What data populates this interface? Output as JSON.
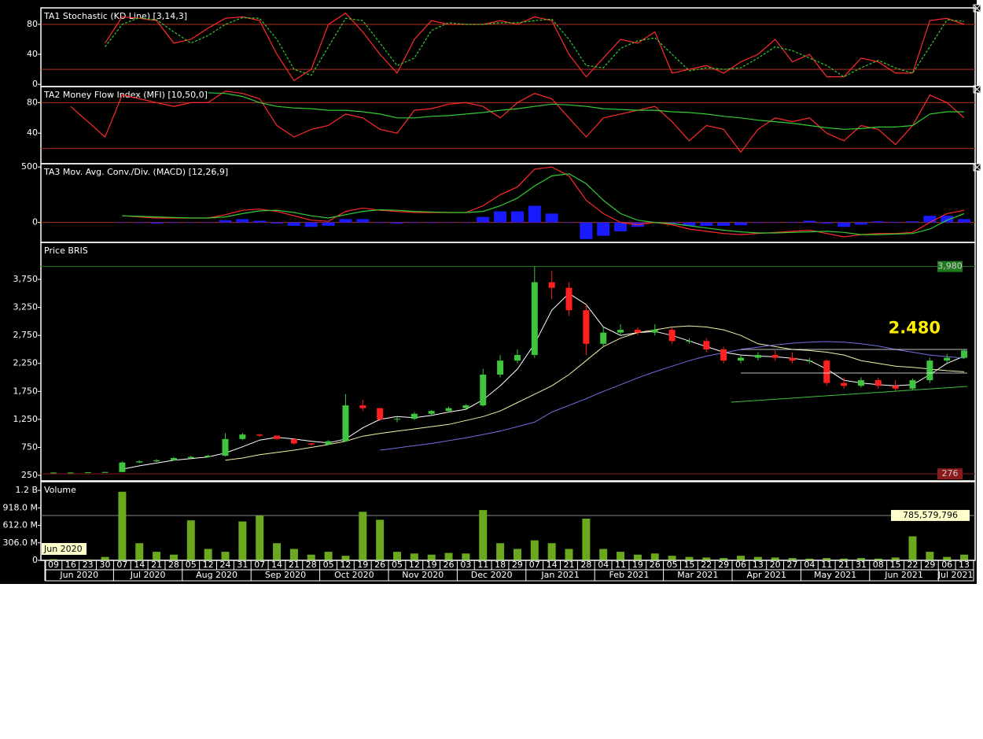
{
  "chart_data": [
    {
      "type": "line",
      "title": "TA1 Stochastic (KD Line) [3,14,3]",
      "ylim": [
        -3,
        102
      ],
      "yticks": [
        0,
        40,
        80
      ],
      "levels": [
        20,
        80
      ],
      "level_color": "#b03020",
      "series": [
        {
          "color": "#ff2a2a",
          "dash": false,
          "values": [
            null,
            null,
            null,
            55,
            90,
            88,
            85,
            55,
            60,
            75,
            88,
            90,
            85,
            40,
            5,
            20,
            80,
            95,
            70,
            40,
            15,
            60,
            85,
            80,
            80,
            80,
            85,
            80,
            90,
            85,
            40,
            10,
            35,
            60,
            55,
            70,
            15,
            20,
            25,
            15,
            30,
            40,
            60,
            30,
            40,
            10,
            10,
            35,
            30,
            15,
            15,
            85,
            88,
            80
          ]
        },
        {
          "color": "#33cc33",
          "dash": true,
          "values": [
            null,
            null,
            null,
            50,
            80,
            89,
            86,
            70,
            55,
            65,
            80,
            89,
            88,
            60,
            20,
            12,
            50,
            88,
            85,
            55,
            25,
            35,
            72,
            82,
            80,
            80,
            82,
            82,
            85,
            87,
            60,
            25,
            22,
            48,
            58,
            62,
            40,
            18,
            22,
            20,
            22,
            35,
            50,
            45,
            35,
            25,
            10,
            22,
            32,
            22,
            15,
            50,
            86,
            84
          ]
        }
      ]
    },
    {
      "type": "line",
      "title": "TA2 Money Flow Index (MFI) [10,50,0]",
      "ylim": [
        0,
        101
      ],
      "yticks": [
        40,
        80
      ],
      "levels": [
        20,
        80
      ],
      "level_color": "#b03020",
      "series": [
        {
          "color": "#ff2a2a",
          "dash": false,
          "values": [
            null,
            75,
            55,
            35,
            90,
            85,
            80,
            75,
            80,
            80,
            95,
            92,
            85,
            50,
            35,
            45,
            50,
            65,
            60,
            45,
            40,
            70,
            72,
            78,
            80,
            75,
            60,
            80,
            92,
            85,
            60,
            35,
            60,
            65,
            70,
            75,
            55,
            30,
            50,
            45,
            15,
            45,
            60,
            55,
            60,
            40,
            30,
            50,
            45,
            25,
            50,
            90,
            80,
            60
          ]
        },
        {
          "color": "#33cc33",
          "dash": false,
          "values": [
            null,
            null,
            null,
            null,
            null,
            null,
            null,
            null,
            null,
            93,
            92,
            88,
            80,
            75,
            73,
            72,
            70,
            70,
            68,
            65,
            60,
            60,
            62,
            63,
            65,
            67,
            70,
            72,
            75,
            78,
            77,
            75,
            72,
            71,
            70,
            70,
            68,
            67,
            65,
            62,
            60,
            57,
            55,
            53,
            50,
            47,
            45,
            46,
            48,
            48,
            50,
            65,
            68,
            68
          ]
        }
      ]
    },
    {
      "type": "combo",
      "title": "TA3 Mov. Avg. Conv./Div. (MACD) [12,26,9]",
      "ylim": [
        -180,
        530
      ],
      "yticks": [
        0,
        500
      ],
      "levels": [
        0
      ],
      "level_color": "#b03020",
      "histogram": {
        "color": "#1a1aff",
        "values": [
          null,
          null,
          null,
          null,
          0,
          -5,
          -10,
          -5,
          0,
          0,
          20,
          30,
          15,
          -10,
          -30,
          -40,
          -30,
          30,
          30,
          -5,
          -10,
          -5,
          -5,
          0,
          0,
          50,
          100,
          100,
          150,
          80,
          0,
          -150,
          -120,
          -80,
          -40,
          0,
          -10,
          -30,
          -30,
          -30,
          -25,
          -5,
          0,
          5,
          15,
          -10,
          -40,
          -20,
          10,
          5,
          10,
          60,
          60,
          30
        ]
      },
      "series": [
        {
          "color": "#ff2a2a",
          "dash": false,
          "values": [
            null,
            null,
            null,
            null,
            60,
            50,
            40,
            40,
            40,
            40,
            70,
            110,
            120,
            100,
            60,
            20,
            10,
            100,
            130,
            110,
            100,
            90,
            90,
            90,
            90,
            150,
            250,
            320,
            480,
            500,
            420,
            200,
            80,
            0,
            -20,
            0,
            -20,
            -60,
            -80,
            -100,
            -110,
            -100,
            -90,
            -80,
            -70,
            -100,
            -130,
            -110,
            -100,
            -100,
            -90,
            0,
            80,
            110
          ]
        },
        {
          "color": "#33cc33",
          "dash": false,
          "values": [
            null,
            null,
            null,
            null,
            60,
            55,
            50,
            45,
            40,
            40,
            50,
            80,
            105,
            110,
            90,
            60,
            40,
            70,
            100,
            115,
            110,
            100,
            95,
            90,
            90,
            100,
            150,
            220,
            330,
            420,
            440,
            350,
            200,
            80,
            20,
            0,
            -10,
            -30,
            -50,
            -70,
            -85,
            -95,
            -95,
            -90,
            -85,
            -80,
            -90,
            -110,
            -110,
            -105,
            -100,
            -60,
            20,
            80
          ]
        }
      ]
    },
    {
      "type": "candlestick",
      "title": "Price BRIS",
      "ylim": [
        152,
        4411
      ],
      "yticks": [
        {
          "value": 250,
          "label": "250"
        },
        {
          "value": 750,
          "label": "750"
        },
        {
          "value": 1250,
          "label": "1,250"
        },
        {
          "value": 1750,
          "label": "1,750"
        },
        {
          "value": 2250,
          "label": "2,250"
        },
        {
          "value": 2750,
          "label": "2,750"
        },
        {
          "value": 3250,
          "label": "3,250"
        },
        {
          "value": 3750,
          "label": "3,750"
        }
      ],
      "up_color": "#3ec43e",
      "down_color": "#ff2020",
      "open": [
        300,
        300,
        300,
        305,
        310,
        480,
        500,
        520,
        560,
        580,
        600,
        900,
        980,
        960,
        900,
        820,
        800,
        860,
        1500,
        1450,
        1250,
        1260,
        1350,
        1400,
        1450,
        1500,
        2050,
        2300,
        2400,
        3700,
        3600,
        3200,
        2600,
        2800,
        2850,
        2800,
        2850,
        2650,
        2650,
        2500,
        2300,
        2350,
        2400,
        2350,
        2300,
        2300,
        1900,
        1850,
        1950,
        1850,
        1800,
        1950,
        2300,
        2350
      ],
      "high": [
        310,
        310,
        310,
        315,
        500,
        520,
        540,
        580,
        600,
        620,
        1000,
        1010,
        990,
        960,
        900,
        830,
        880,
        1700,
        1600,
        1460,
        1300,
        1380,
        1420,
        1480,
        1520,
        2150,
        2400,
        2500,
        3980,
        3900,
        3700,
        3300,
        2900,
        2950,
        2900,
        2950,
        2900,
        2700,
        2700,
        2550,
        2400,
        2450,
        2480,
        2450,
        2350,
        2320,
        2000,
        2000,
        2000,
        1950,
        1980,
        2350,
        2420,
        2500
      ],
      "low": [
        290,
        290,
        295,
        300,
        305,
        470,
        490,
        510,
        550,
        570,
        590,
        880,
        940,
        880,
        800,
        780,
        790,
        850,
        1400,
        1220,
        1200,
        1240,
        1330,
        1380,
        1420,
        1480,
        2000,
        2250,
        2350,
        3400,
        3100,
        2400,
        2550,
        2750,
        2750,
        2750,
        2600,
        2600,
        2450,
        2250,
        2250,
        2300,
        2300,
        2250,
        2250,
        1850,
        1800,
        1820,
        1800,
        1750,
        1780,
        1900,
        2250,
        2330
      ],
      "close": [
        300,
        300,
        305,
        310,
        480,
        500,
        520,
        560,
        580,
        600,
        900,
        980,
        960,
        900,
        820,
        800,
        860,
        1500,
        1450,
        1250,
        1260,
        1350,
        1400,
        1450,
        1500,
        2050,
        2300,
        2400,
        3700,
        3600,
        3200,
        2600,
        2800,
        2850,
        2800,
        2850,
        2650,
        2650,
        2500,
        2300,
        2350,
        2400,
        2350,
        2300,
        2300,
        1900,
        1850,
        1950,
        1850,
        1800,
        1950,
        2300,
        2350,
        2480
      ],
      "lines": [
        {
          "color": "#ffffff",
          "values": [
            null,
            null,
            null,
            null,
            360,
            420,
            470,
            520,
            550,
            580,
            650,
            760,
            880,
            930,
            900,
            860,
            830,
            900,
            1100,
            1250,
            1300,
            1280,
            1320,
            1380,
            1430,
            1600,
            1850,
            2150,
            2600,
            3200,
            3500,
            3300,
            2900,
            2750,
            2800,
            2820,
            2750,
            2650,
            2550,
            2450,
            2400,
            2380,
            2370,
            2340,
            2300,
            2150,
            1950,
            1900,
            1870,
            1850,
            1870,
            2050,
            2250,
            2380
          ]
        },
        {
          "color": "#f4f0a8",
          "values": [
            null,
            null,
            null,
            null,
            null,
            null,
            null,
            null,
            null,
            null,
            520,
            560,
            620,
            660,
            700,
            750,
            800,
            860,
            950,
            1000,
            1040,
            1080,
            1120,
            1160,
            1230,
            1300,
            1400,
            1550,
            1700,
            1850,
            2050,
            2300,
            2550,
            2700,
            2800,
            2850,
            2900,
            2920,
            2900,
            2850,
            2750,
            2600,
            2550,
            2500,
            2480,
            2450,
            2400,
            2300,
            2250,
            2200,
            2180,
            2150,
            2120,
            2100
          ]
        },
        {
          "color": "#6f6fe0",
          "values": [
            null,
            null,
            null,
            null,
            null,
            null,
            null,
            null,
            null,
            null,
            null,
            null,
            null,
            null,
            null,
            null,
            null,
            null,
            null,
            700,
            740,
            780,
            820,
            870,
            920,
            980,
            1040,
            1120,
            1200,
            1380,
            1500,
            1620,
            1750,
            1870,
            1990,
            2100,
            2200,
            2300,
            2380,
            2440,
            2500,
            2540,
            2580,
            2610,
            2630,
            2640,
            2630,
            2600,
            2560,
            2500,
            2450,
            2400,
            2370,
            2345
          ]
        }
      ],
      "markers": [
        {
          "value": 3980,
          "label": "3,980",
          "color": "#1f7a1f"
        },
        {
          "value": 276,
          "label": "276",
          "color": "#8b1a1a"
        }
      ],
      "annotation": {
        "text": "2.480",
        "color": "#ffee00"
      }
    },
    {
      "type": "bar",
      "title": "Volume",
      "color": "#6aa81e",
      "ylim": [
        0,
        1377000000
      ],
      "yticks": [
        0,
        {
          "value": 306000000,
          "label": "306.0 M"
        },
        {
          "value": 612000000,
          "label": "612.0 M"
        },
        {
          "value": 918000000,
          "label": "918.0 M"
        },
        {
          "value": 1224000000,
          "label": "1.2 B"
        }
      ],
      "categories": [
        "09",
        "16",
        "23",
        "30",
        "07",
        "14",
        "21",
        "28",
        "05",
        "12",
        "24",
        "31",
        "07",
        "14",
        "21",
        "28",
        "05",
        "12",
        "19",
        "26",
        "05",
        "12",
        "19",
        "26",
        "03",
        "11",
        "18",
        "29",
        "07",
        "14",
        "21",
        "28",
        "04",
        "11",
        "19",
        "26",
        "05",
        "15",
        "22",
        "29",
        "06",
        "13",
        "20",
        "27",
        "04",
        "11",
        "21",
        "31",
        "08",
        "15",
        "22",
        "29",
        "06",
        "13"
      ],
      "months": [
        "Jun 2020",
        "Jul 2020",
        "Aug 2020",
        "Sep 2020",
        "Oct 2020",
        "Nov 2020",
        "Dec 2020",
        "Jan 2021",
        "Feb 2021",
        "Mar 2021",
        "Apr 2021",
        "May 2021",
        "Jun 2021",
        "Jul 2021"
      ],
      "values": [
        20000000,
        10000000,
        15000000,
        60000000,
        1200000000,
        300000000,
        150000000,
        100000000,
        700000000,
        200000000,
        150000000,
        680000000,
        780000000,
        300000000,
        200000000,
        100000000,
        150000000,
        80000000,
        850000000,
        710000000,
        150000000,
        120000000,
        100000000,
        130000000,
        120000000,
        880000000,
        300000000,
        200000000,
        350000000,
        300000000,
        200000000,
        730000000,
        200000000,
        150000000,
        100000000,
        120000000,
        80000000,
        60000000,
        50000000,
        40000000,
        80000000,
        60000000,
        50000000,
        40000000,
        30000000,
        40000000,
        30000000,
        40000000,
        30000000,
        50000000,
        420000000,
        150000000,
        60000000,
        100000000
      ],
      "markers": [
        {
          "value": 785579796,
          "label": "785,579,796",
          "color": "#888888"
        }
      ],
      "tooltip": "Jun 2020"
    }
  ]
}
